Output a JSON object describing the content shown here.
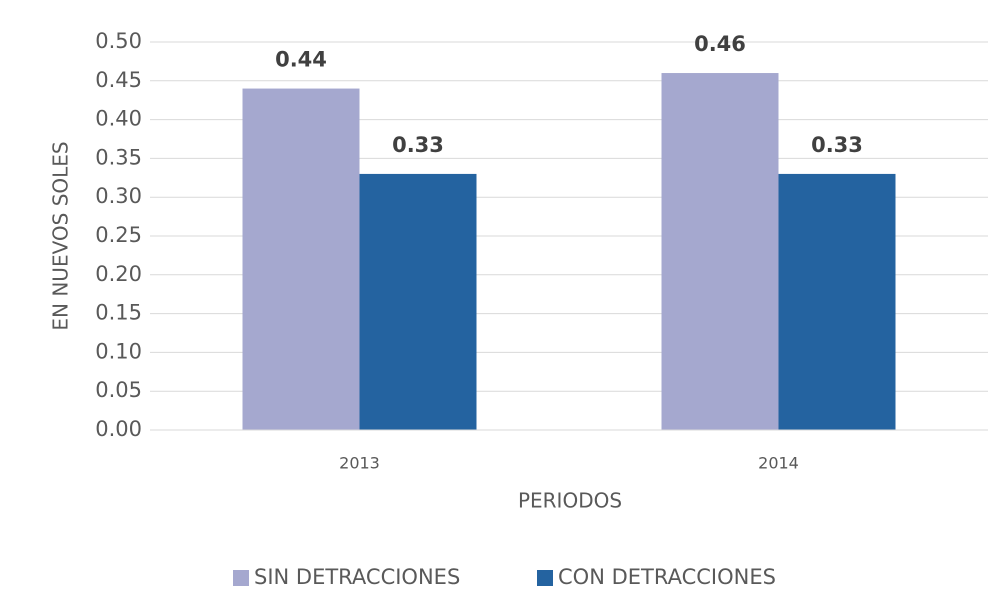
{
  "chart_data": {
    "type": "bar",
    "x_label": "PERIODOS",
    "y_label": "EN NUEVOS SOLES",
    "categories": [
      "2013",
      "2014"
    ],
    "series": [
      {
        "name": "SIN DETRACCIONES",
        "color": "#a5a8cf",
        "values": [
          0.44,
          0.46
        ]
      },
      {
        "name": "CON DETRACCIONES",
        "color": "#2463a0",
        "values": [
          0.33,
          0.33
        ]
      }
    ],
    "ylim": [
      0,
      0.5
    ],
    "yticks": [
      {
        "value": 0,
        "label": "0.00"
      },
      0.05,
      {
        "value": 0.1,
        "label": "0.10"
      },
      0.15,
      {
        "value": 0.2,
        "label": "0.20"
      },
      0.25,
      {
        "value": 0.3,
        "label": "0.30"
      },
      0.35,
      {
        "value": 0.4,
        "label": "0.40"
      },
      0.45,
      {
        "value": 0.5,
        "label": "0.50"
      }
    ],
    "grid": true,
    "legend": "bottom"
  }
}
